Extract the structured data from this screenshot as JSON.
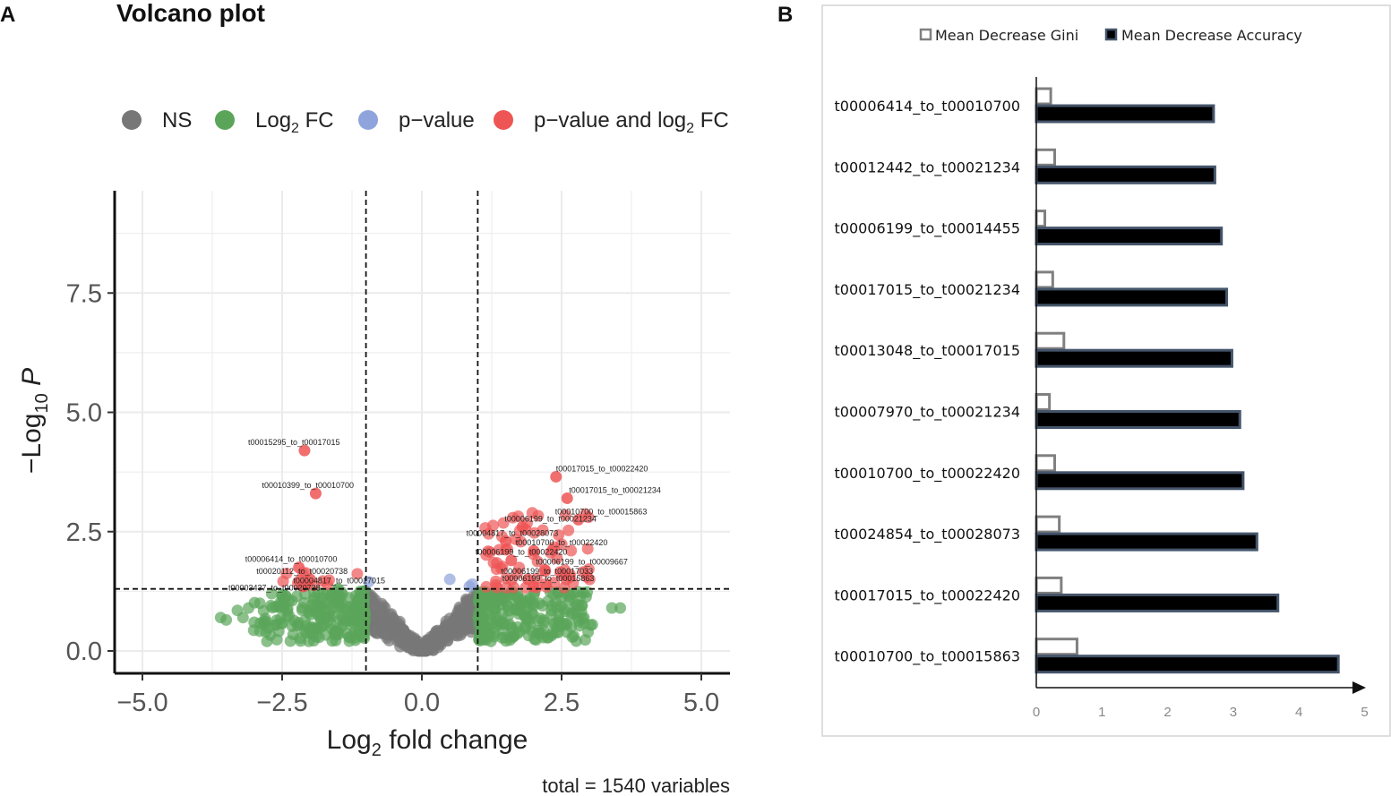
{
  "chart_data": [
    {
      "type": "scatter",
      "panel": "A",
      "title": "Volcano plot",
      "xlabel": "Log2 fold change",
      "ylabel": "-Log10 P",
      "xlim": [
        -5.5,
        5.5
      ],
      "ylim": [
        -0.5,
        9.6
      ],
      "xticks": [
        -5.0,
        -2.5,
        0.0,
        2.5,
        5.0
      ],
      "xtick_labels": [
        "−5.0",
        "−2.5",
        "0.0",
        "2.5",
        "5.0"
      ],
      "yticks": [
        0.0,
        2.5,
        5.0,
        7.5
      ],
      "ytick_labels": [
        "0.0",
        "2.5",
        "5.0",
        "7.5"
      ],
      "fc_cutoff": 1.0,
      "p_cutoff": 1.3,
      "legend": [
        {
          "label": "NS",
          "color": "#777777"
        },
        {
          "label": "Log2 FC",
          "color": "#5aa55a"
        },
        {
          "label": "p−value",
          "color": "#8fa3dc"
        },
        {
          "label": "p−value and log2 FC",
          "color": "#ee5555"
        }
      ],
      "caption": "total = 1540 variables",
      "labeled_points": [
        {
          "label": "t00015295_to_t00017015",
          "x": -2.1,
          "y": 4.2
        },
        {
          "label": "t00010399_to_t00010700",
          "x": -1.9,
          "y": 3.3
        },
        {
          "label": "t00017015_to_t00022420",
          "x": 2.4,
          "y": 3.65
        },
        {
          "label": "t00017015_to_t00021234",
          "x": 2.6,
          "y": 3.2
        },
        {
          "label": "t00010700_to_t00015863",
          "x": 2.8,
          "y": 2.75
        },
        {
          "label": "t00006199_to_t00021234",
          "x": 1.8,
          "y": 2.6
        },
        {
          "label": "t00004817_to_t00028073",
          "x": 1.5,
          "y": 2.3
        },
        {
          "label": "t00010700_to_t00022420",
          "x": 2.0,
          "y": 2.1
        },
        {
          "label": "t00006199_to_t00022420",
          "x": 1.6,
          "y": 1.9
        },
        {
          "label": "t00006199_to_t00009667",
          "x": 2.2,
          "y": 1.7
        },
        {
          "label": "t00006414_to_t00010700",
          "x": -2.2,
          "y": 1.75
        },
        {
          "label": "t00006199_to_t00017033",
          "x": 1.9,
          "y": 1.5
        },
        {
          "label": "t00020112_to_t00020738",
          "x": -2.0,
          "y": 1.5
        },
        {
          "label": "t00004817_to_t00017015",
          "x": -1.5,
          "y": 1.3
        },
        {
          "label": "t00006199_to_t00015863",
          "x": 2.0,
          "y": 1.35
        },
        {
          "label": "t00003437_to_t00020738",
          "x": -2.5,
          "y": 1.15
        }
      ]
    },
    {
      "type": "bar",
      "panel": "B",
      "orientation": "horizontal",
      "categories": [
        "t00006414_to_t00010700",
        "t00012442_to_t00021234",
        "t00006199_to_t00014455",
        "t00017015_to_t00021234",
        "t00013048_to_t00017015",
        "t00007970_to_t00021234",
        "t00010700_to_t00022420",
        "t00024854_to_t00028073",
        "t00017015_to_t00022420",
        "t00010700_to_t00015863"
      ],
      "series": [
        {
          "name": "Mean Decrease Gini",
          "color": "#ffffff",
          "values": [
            0.22,
            0.28,
            0.13,
            0.25,
            0.42,
            0.2,
            0.28,
            0.35,
            0.38,
            0.62
          ]
        },
        {
          "name": "Mean Decrease Accuracy",
          "color": "#000000",
          "values": [
            2.7,
            2.72,
            2.82,
            2.9,
            2.98,
            3.1,
            3.15,
            3.36,
            3.68,
            4.6
          ]
        }
      ],
      "xlim": [
        0,
        5
      ],
      "xticks": [
        0,
        1,
        2,
        3,
        4,
        5
      ],
      "legend_position": "top"
    }
  ],
  "labels": {
    "panel_a": "A",
    "panel_b": "B",
    "sub10": "10",
    "sub2": "2"
  }
}
